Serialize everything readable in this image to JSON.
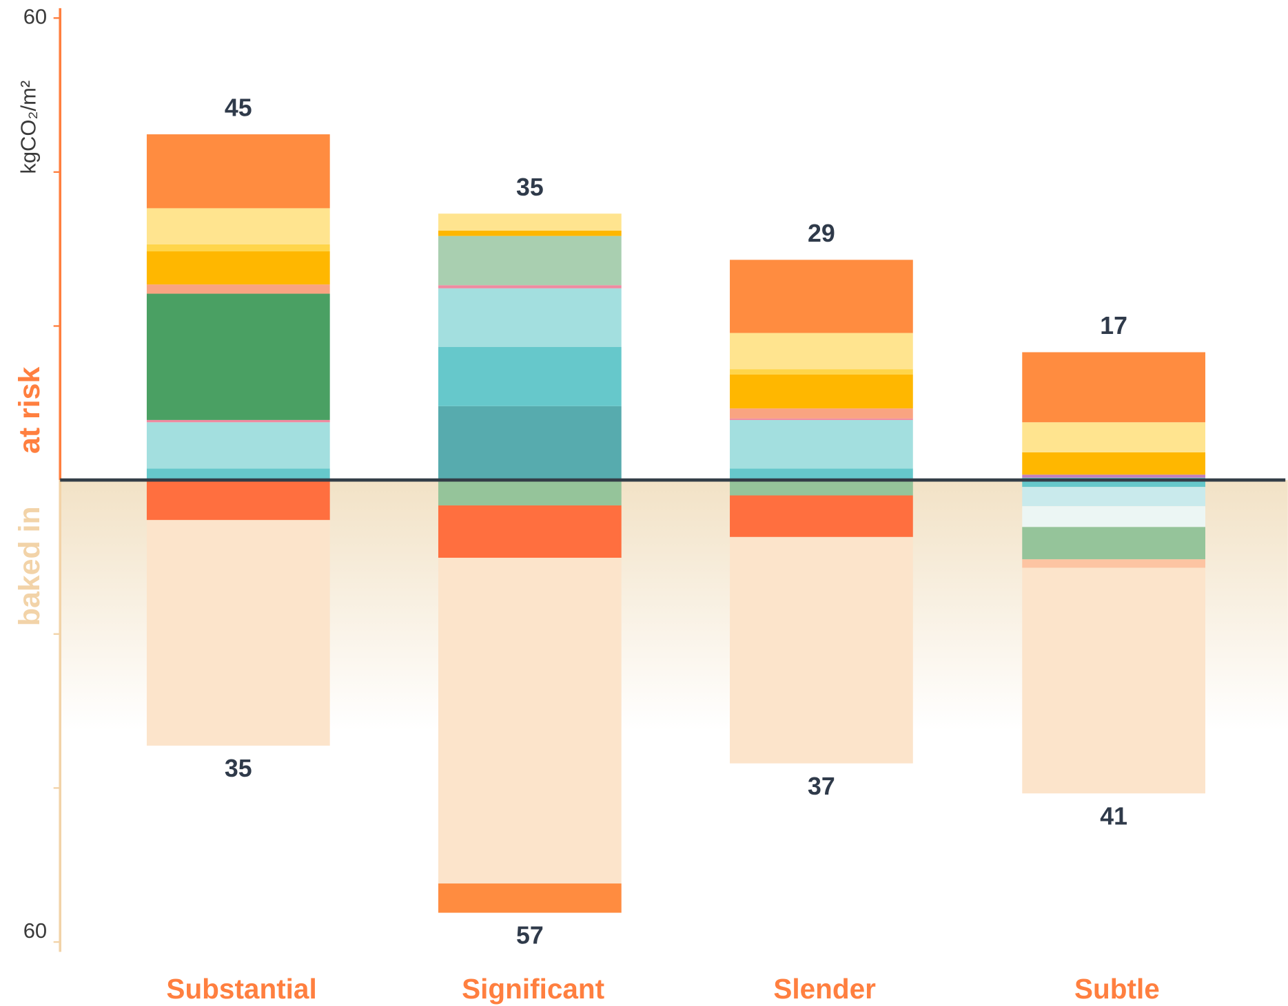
{
  "chart_data": {
    "type": "diverging-stacked-bar",
    "y_label": "kgCO₂/m²",
    "upper_label": "at risk",
    "lower_label": "baked in",
    "upper_color": "#ff7f3f",
    "lower_color": "#f2d3a8",
    "categories": [
      "Substantial",
      "Significant",
      "Slender",
      "Subtle"
    ],
    "totals_above": [
      45,
      35,
      29,
      17
    ],
    "totals_below": [
      35,
      57,
      37,
      41
    ],
    "ylim": [
      -60,
      60
    ],
    "yticks": [
      {
        "value": 60,
        "label": "60"
      },
      {
        "value": -60,
        "label": "60"
      }
    ],
    "yticks_minor": [
      40,
      20,
      -20,
      -40
    ],
    "stacks": [
      {
        "above": [
          {
            "color": "#66c8cb",
            "value": 1.5
          },
          {
            "color": "#a3dfdf",
            "value": 6.0
          },
          {
            "color": "#ef8aa0",
            "value": 0.3
          },
          {
            "color": "#4aa063",
            "value": 16.4
          },
          {
            "color": "#f9a481",
            "value": 1.2
          },
          {
            "color": "#ffb700",
            "value": 4.3
          },
          {
            "color": "#ffd54a",
            "value": 0.9
          },
          {
            "color": "#ffe48f",
            "value": 4.7
          },
          {
            "color": "#ff8c40",
            "value": 9.6
          }
        ],
        "below": [
          {
            "color": "#ff6f3f",
            "value": 5.2
          },
          {
            "color": "#fce4cb",
            "value": 29.3
          }
        ]
      },
      {
        "above": [
          {
            "color": "#57abae",
            "value": 9.6
          },
          {
            "color": "#66c8cb",
            "value": 7.7
          },
          {
            "color": "#a3dfdf",
            "value": 7.6
          },
          {
            "color": "#ef8aa0",
            "value": 0.4
          },
          {
            "color": "#a9cfb0",
            "value": 6.4
          },
          {
            "color": "#ffb700",
            "value": 0.7
          },
          {
            "color": "#ffe48f",
            "value": 2.2
          }
        ],
        "below": [
          {
            "color": "#95c49a",
            "value": 3.3
          },
          {
            "color": "#ff6f3f",
            "value": 6.8
          },
          {
            "color": "#fce4cb",
            "value": 42.3
          },
          {
            "color": "#ff8c40",
            "value": 3.8
          }
        ]
      },
      {
        "above": [
          {
            "color": "#66c8cb",
            "value": 1.5
          },
          {
            "color": "#a3dfdf",
            "value": 6.3
          },
          {
            "color": "#ef8aa0",
            "value": 0.2
          },
          {
            "color": "#f9a481",
            "value": 1.3
          },
          {
            "color": "#ffb700",
            "value": 4.4
          },
          {
            "color": "#ffd54a",
            "value": 0.7
          },
          {
            "color": "#ffe48f",
            "value": 4.7
          },
          {
            "color": "#ff8c40",
            "value": 9.5
          }
        ],
        "below": [
          {
            "color": "#95c49a",
            "value": 2.0
          },
          {
            "color": "#ff6f3f",
            "value": 5.4
          },
          {
            "color": "#fce4cb",
            "value": 29.4
          }
        ]
      },
      {
        "above": [
          {
            "color": "#66c8cb",
            "value": 0.3
          },
          {
            "color": "#c07fbf",
            "value": 0.4
          },
          {
            "color": "#ffb700",
            "value": 2.9
          },
          {
            "color": "#ffe48f",
            "value": 3.9
          },
          {
            "color": "#ff8c40",
            "value": 9.1
          }
        ],
        "below": [
          {
            "color": "#66c8cb",
            "value": 0.9
          },
          {
            "color": "#c9eaec",
            "value": 2.5
          },
          {
            "color": "#ecf6f4",
            "value": 2.7
          },
          {
            "color": "#95c49a",
            "value": 4.2
          },
          {
            "color": "#fdc4a2",
            "value": 1.1
          },
          {
            "color": "#fce4cb",
            "value": 29.3
          }
        ]
      }
    ]
  }
}
